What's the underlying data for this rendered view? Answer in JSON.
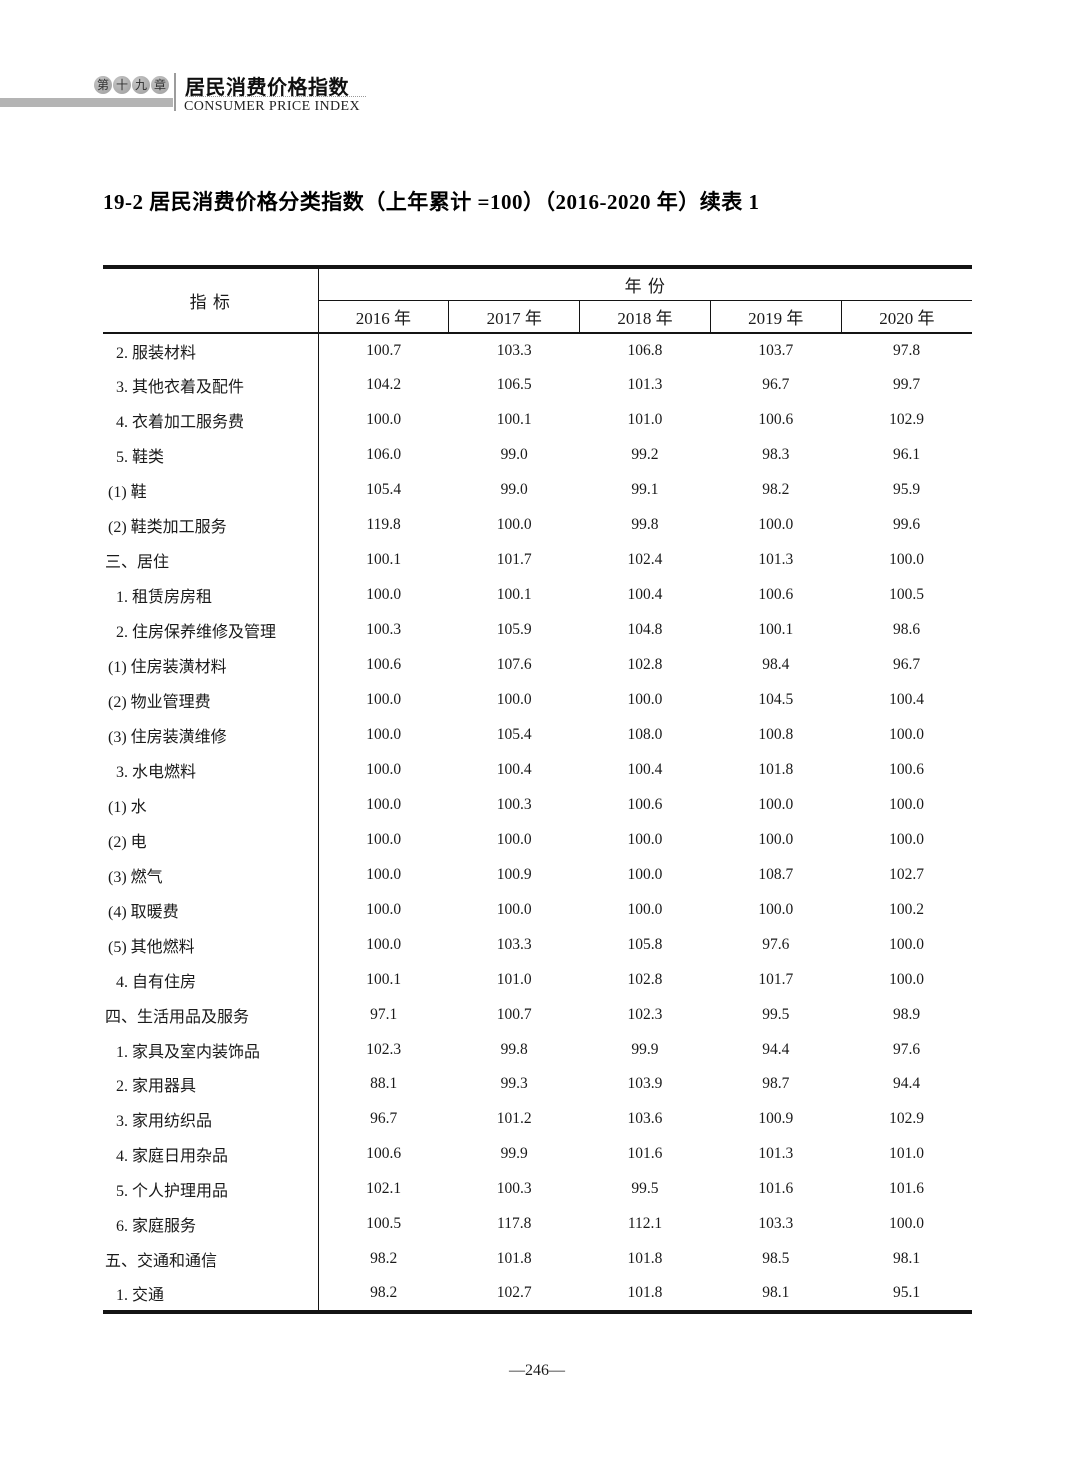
{
  "header": {
    "chapter_badge_chars": [
      "第",
      "十",
      "九",
      "章"
    ],
    "chapter_title_zh": "居民消费价格指数",
    "chapter_title_en": "CONSUMER PRICE INDEX"
  },
  "table_title": "19-2  居民消费价格分类指数（上年累计 =100）（2016-2020 年）续表 1",
  "table": {
    "indicator_header": "指  标",
    "year_group_header": "年  份",
    "year_columns": [
      "2016 年",
      "2017 年",
      "2018 年",
      "2019 年",
      "2020 年"
    ],
    "rows": [
      {
        "label": "2. 服装材料",
        "level": "num",
        "values": [
          "100.7",
          "103.3",
          "106.8",
          "103.7",
          "97.8"
        ]
      },
      {
        "label": "3. 其他衣着及配件",
        "level": "num",
        "values": [
          "104.2",
          "106.5",
          "101.3",
          "96.7",
          "99.7"
        ]
      },
      {
        "label": "4. 衣着加工服务费",
        "level": "num",
        "values": [
          "100.0",
          "100.1",
          "101.0",
          "100.6",
          "102.9"
        ]
      },
      {
        "label": "5. 鞋类",
        "level": "num",
        "values": [
          "106.0",
          "99.0",
          "99.2",
          "98.3",
          "96.1"
        ]
      },
      {
        "label": "(1) 鞋",
        "level": "paren",
        "values": [
          "105.4",
          "99.0",
          "99.1",
          "98.2",
          "95.9"
        ]
      },
      {
        "label": "(2) 鞋类加工服务",
        "level": "paren",
        "values": [
          "119.8",
          "100.0",
          "99.8",
          "100.0",
          "99.6"
        ]
      },
      {
        "label": "三、居住",
        "level": "section",
        "values": [
          "100.1",
          "101.7",
          "102.4",
          "101.3",
          "100.0"
        ]
      },
      {
        "label": "1. 租赁房房租",
        "level": "num",
        "values": [
          "100.0",
          "100.1",
          "100.4",
          "100.6",
          "100.5"
        ]
      },
      {
        "label": "2. 住房保养维修及管理",
        "level": "num",
        "values": [
          "100.3",
          "105.9",
          "104.8",
          "100.1",
          "98.6"
        ]
      },
      {
        "label": "(1) 住房装潢材料",
        "level": "paren",
        "values": [
          "100.6",
          "107.6",
          "102.8",
          "98.4",
          "96.7"
        ]
      },
      {
        "label": "(2) 物业管理费",
        "level": "paren",
        "values": [
          "100.0",
          "100.0",
          "100.0",
          "104.5",
          "100.4"
        ]
      },
      {
        "label": "(3) 住房装潢维修",
        "level": "paren",
        "values": [
          "100.0",
          "105.4",
          "108.0",
          "100.8",
          "100.0"
        ]
      },
      {
        "label": "3. 水电燃料",
        "level": "num",
        "values": [
          "100.0",
          "100.4",
          "100.4",
          "101.8",
          "100.6"
        ]
      },
      {
        "label": "(1) 水",
        "level": "paren",
        "values": [
          "100.0",
          "100.3",
          "100.6",
          "100.0",
          "100.0"
        ]
      },
      {
        "label": "(2) 电",
        "level": "paren",
        "values": [
          "100.0",
          "100.0",
          "100.0",
          "100.0",
          "100.0"
        ]
      },
      {
        "label": "(3) 燃气",
        "level": "paren",
        "values": [
          "100.0",
          "100.9",
          "100.0",
          "108.7",
          "102.7"
        ]
      },
      {
        "label": "(4) 取暖费",
        "level": "paren",
        "values": [
          "100.0",
          "100.0",
          "100.0",
          "100.0",
          "100.2"
        ]
      },
      {
        "label": "(5) 其他燃料",
        "level": "paren",
        "values": [
          "100.0",
          "103.3",
          "105.8",
          "97.6",
          "100.0"
        ]
      },
      {
        "label": "4. 自有住房",
        "level": "num",
        "values": [
          "100.1",
          "101.0",
          "102.8",
          "101.7",
          "100.0"
        ]
      },
      {
        "label": "四、生活用品及服务",
        "level": "section",
        "values": [
          "97.1",
          "100.7",
          "102.3",
          "99.5",
          "98.9"
        ]
      },
      {
        "label": "1. 家具及室内装饰品",
        "level": "num",
        "values": [
          "102.3",
          "99.8",
          "99.9",
          "94.4",
          "97.6"
        ]
      },
      {
        "label": "2. 家用器具",
        "level": "num",
        "values": [
          "88.1",
          "99.3",
          "103.9",
          "98.7",
          "94.4"
        ]
      },
      {
        "label": "3. 家用纺织品",
        "level": "num",
        "values": [
          "96.7",
          "101.2",
          "103.6",
          "100.9",
          "102.9"
        ]
      },
      {
        "label": "4. 家庭日用杂品",
        "level": "num",
        "values": [
          "100.6",
          "99.9",
          "101.6",
          "101.3",
          "101.0"
        ]
      },
      {
        "label": "5. 个人护理用品",
        "level": "num",
        "values": [
          "102.1",
          "100.3",
          "99.5",
          "101.6",
          "101.6"
        ]
      },
      {
        "label": "6. 家庭服务",
        "level": "num",
        "values": [
          "100.5",
          "117.8",
          "112.1",
          "103.3",
          "100.0"
        ]
      },
      {
        "label": "五、交通和通信",
        "level": "section",
        "values": [
          "98.2",
          "101.8",
          "101.8",
          "98.5",
          "98.1"
        ]
      },
      {
        "label": "1. 交通",
        "level": "num",
        "values": [
          "98.2",
          "102.7",
          "101.8",
          "98.1",
          "95.1"
        ]
      }
    ]
  },
  "footer": {
    "page_number": "—246—"
  }
}
